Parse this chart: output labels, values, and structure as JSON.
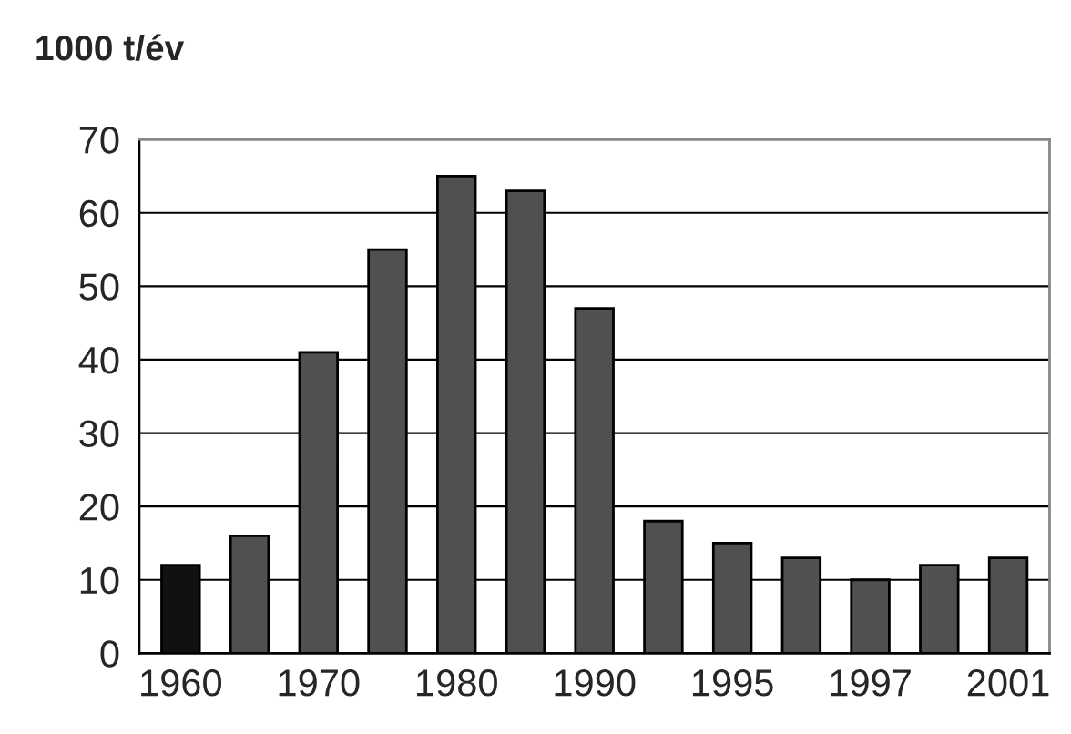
{
  "chart_data": {
    "type": "bar",
    "ylabel": "1000 t/év",
    "categories": [
      "1960",
      null,
      "1970",
      null,
      "1980",
      null,
      "1990",
      null,
      "1995",
      null,
      "1997",
      null,
      "2001"
    ],
    "values": [
      12,
      16,
      41,
      55,
      65,
      63,
      47,
      18,
      15,
      13,
      10,
      12,
      13
    ],
    "colors": [
      "#111111",
      "#505050",
      "#505050",
      "#505050",
      "#505050",
      "#505050",
      "#505050",
      "#505050",
      "#505050",
      "#505050",
      "#505050",
      "#505050",
      "#505050"
    ],
    "ylim": [
      0,
      70
    ],
    "yticks": [
      0,
      10,
      20,
      30,
      40,
      50,
      60,
      70
    ],
    "grid": "y",
    "legend": false
  }
}
